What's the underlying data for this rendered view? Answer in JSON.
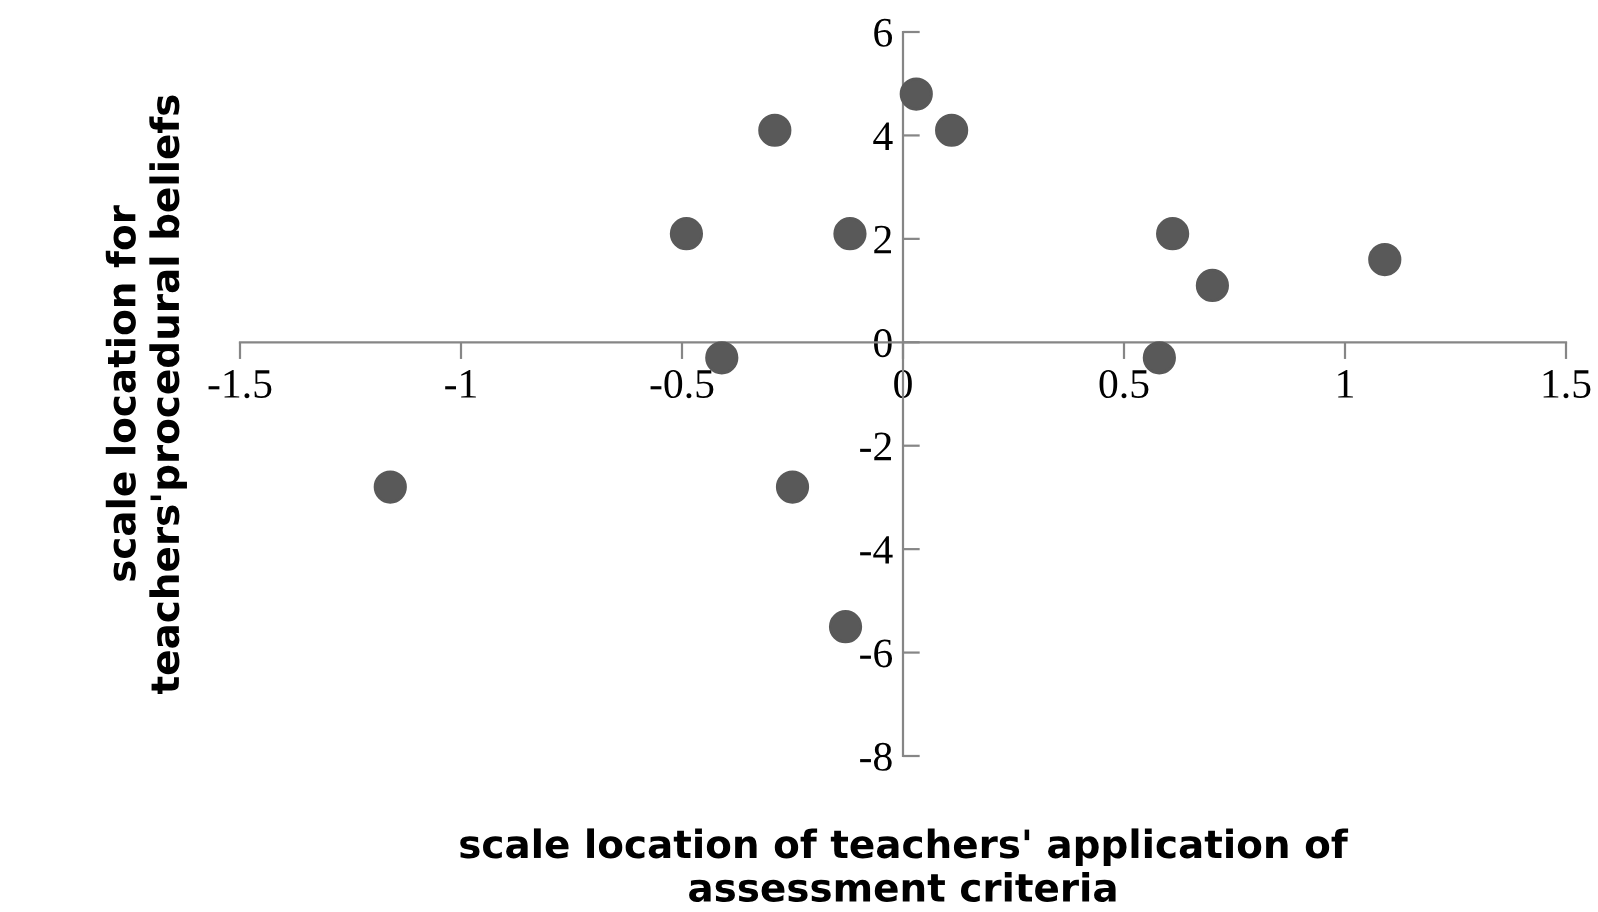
{
  "chart_data": {
    "type": "scatter",
    "xlabel": "scale location of teachers' application of\nassessment criteria",
    "ylabel": "scale location for\nteachers'procedural beliefs",
    "x": [
      -1.16,
      -0.49,
      -0.41,
      -0.29,
      -0.12,
      -0.25,
      -0.13,
      0.03,
      0.11,
      0.61,
      0.7,
      0.58,
      1.09
    ],
    "values": [
      -2.8,
      2.1,
      -0.3,
      4.1,
      2.1,
      -2.8,
      -5.5,
      4.8,
      4.1,
      2.1,
      1.1,
      -0.3,
      1.6
    ],
    "color": "#595959",
    "marker": "circle",
    "grid": false,
    "legend": false,
    "xlim": [
      -1.5,
      1.5
    ],
    "xticks": [
      -1.5,
      -1,
      -0.5,
      0,
      0.5,
      1,
      1.5
    ],
    "ylim": [
      -8,
      6
    ],
    "yticks": [
      -8,
      -6,
      -4,
      -2,
      0,
      2,
      4,
      6
    ]
  }
}
